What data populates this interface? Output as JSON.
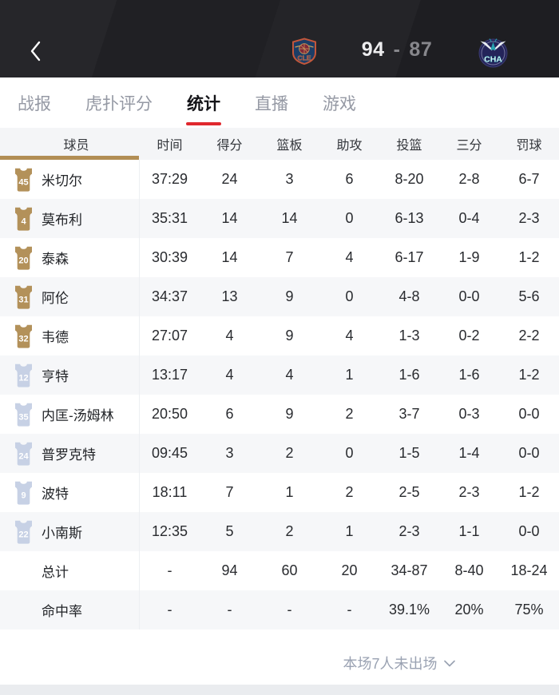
{
  "header": {
    "back_icon": "chevron-left",
    "home_team_abbr": "CLE",
    "away_team_abbr": "CHA",
    "home_score": "94",
    "score_separator": "-",
    "away_score": "87"
  },
  "tabs": [
    {
      "label": "战报",
      "active": false
    },
    {
      "label": "虎扑评分",
      "active": false
    },
    {
      "label": "统计",
      "active": true
    },
    {
      "label": "直播",
      "active": false
    },
    {
      "label": "游戏",
      "active": false
    }
  ],
  "table": {
    "columns": [
      "球员",
      "时间",
      "得分",
      "篮板",
      "助攻",
      "投篮",
      "三分",
      "罚球"
    ],
    "rows": [
      {
        "jersey": "45",
        "jersey_type": "starter",
        "name": "米切尔",
        "stats": [
          "37:29",
          "24",
          "3",
          "6",
          "8-20",
          "2-8",
          "6-7"
        ]
      },
      {
        "jersey": "4",
        "jersey_type": "starter",
        "name": "莫布利",
        "stats": [
          "35:31",
          "14",
          "14",
          "0",
          "6-13",
          "0-4",
          "2-3"
        ]
      },
      {
        "jersey": "20",
        "jersey_type": "starter",
        "name": "泰森",
        "stats": [
          "30:39",
          "14",
          "7",
          "4",
          "6-17",
          "1-9",
          "1-2"
        ]
      },
      {
        "jersey": "31",
        "jersey_type": "starter",
        "name": "阿伦",
        "stats": [
          "34:37",
          "13",
          "9",
          "0",
          "4-8",
          "0-0",
          "5-6"
        ]
      },
      {
        "jersey": "32",
        "jersey_type": "starter",
        "name": "韦德",
        "stats": [
          "27:07",
          "4",
          "9",
          "4",
          "1-3",
          "0-2",
          "2-2"
        ]
      },
      {
        "jersey": "12",
        "jersey_type": "bench",
        "name": "亨特",
        "stats": [
          "13:17",
          "4",
          "4",
          "1",
          "1-6",
          "1-6",
          "1-2"
        ]
      },
      {
        "jersey": "35",
        "jersey_type": "bench",
        "name": "内匡-汤姆林",
        "stats": [
          "20:50",
          "6",
          "9",
          "2",
          "3-7",
          "0-3",
          "0-0"
        ]
      },
      {
        "jersey": "24",
        "jersey_type": "bench",
        "name": "普罗克特",
        "stats": [
          "09:45",
          "3",
          "2",
          "0",
          "1-5",
          "1-4",
          "0-0"
        ]
      },
      {
        "jersey": "9",
        "jersey_type": "bench",
        "name": "波特",
        "stats": [
          "18:11",
          "7",
          "1",
          "2",
          "2-5",
          "2-3",
          "1-2"
        ]
      },
      {
        "jersey": "22",
        "jersey_type": "bench",
        "name": "小南斯",
        "stats": [
          "12:35",
          "5",
          "2",
          "1",
          "2-3",
          "1-1",
          "0-0"
        ]
      },
      {
        "jersey": null,
        "jersey_type": null,
        "name": "总计",
        "stats": [
          "-",
          "94",
          "60",
          "20",
          "34-87",
          "8-40",
          "18-24"
        ]
      },
      {
        "jersey": null,
        "jersey_type": null,
        "name": "命中率",
        "stats": [
          "-",
          "-",
          "-",
          "-",
          "39.1%",
          "20%",
          "75%"
        ]
      }
    ]
  },
  "footer": {
    "note": "本场7人未出场",
    "chevron_icon": "chevron-down"
  },
  "colors": {
    "accent_red": "#e0282e",
    "gold": "#b28e55",
    "starter_jersey": "#b3915a",
    "bench_jersey": "#c7d1e5",
    "header_bg": "#202024",
    "score_muted": "#87878c"
  }
}
